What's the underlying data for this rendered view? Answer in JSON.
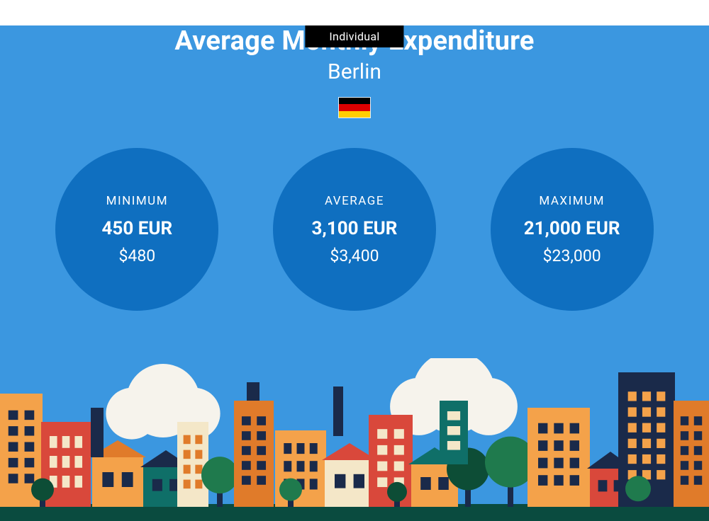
{
  "badge": {
    "label": "Individual",
    "bg": "#000000",
    "color": "#ffffff"
  },
  "header": {
    "title": "Average Monthly Expenditure",
    "subtitle": "Berlin"
  },
  "flag": {
    "country": "Germany",
    "stripes": [
      "#000000",
      "#dd0000",
      "#ffce00"
    ],
    "border": "#ffffff"
  },
  "background": "#3b97e0",
  "circle_color": "#0f6fc0",
  "stats": [
    {
      "label": "MINIMUM",
      "primary": "450 EUR",
      "secondary": "$480"
    },
    {
      "label": "AVERAGE",
      "primary": "3,100 EUR",
      "secondary": "$3,400"
    },
    {
      "label": "MAXIMUM",
      "primary": "21,000 EUR",
      "secondary": "$23,000"
    }
  ],
  "city_palette": {
    "ground": "#0a4b3f",
    "cloud": "#f6f3ec",
    "orange": "#f4a24a",
    "orange_dark": "#e07b2a",
    "red": "#d9483b",
    "teal": "#0f6f68",
    "navy": "#1a2a4a",
    "tree_green": "#1f7a4d",
    "tree_dark": "#0d4d36",
    "cream": "#f4e7c8",
    "window": "#1a2a4a"
  }
}
